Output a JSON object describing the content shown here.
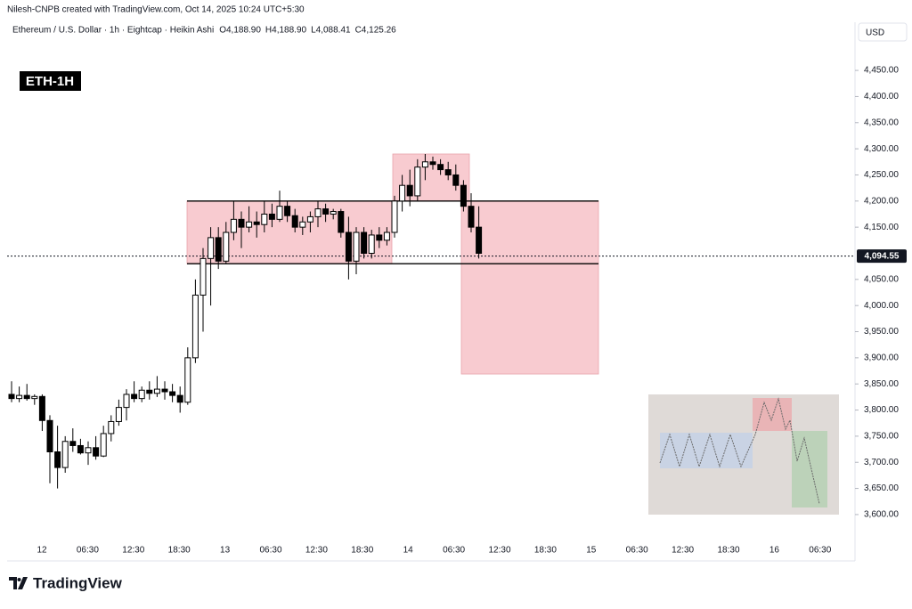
{
  "chart_data": {
    "type": "candlestick",
    "attribution": "Nilesh-CNPB created with TradingView.com, Oct 14, 2025 10:24 UTC+5:30",
    "title": "Ethereum / U.S. Dollar · 1h · Eightcap · Heikin Ashi",
    "ohlc_legend": [
      {
        "value": 4188.9,
        "label": "O4,188.90"
      },
      {
        "value": 4188.9,
        "label": "H4,188.90"
      },
      {
        "value": 4088.41,
        "label": "L4,088.41"
      },
      {
        "value": 4125.26,
        "label": "C4,125.26"
      }
    ],
    "badge": "ETH-1H",
    "currency": "USD",
    "brand": "TradingView",
    "x_labels": [
      "12",
      "06:30",
      "12:30",
      "18:30",
      "13",
      "06:30",
      "12:30",
      "18:30",
      "14",
      "06:30",
      "12:30",
      "18:30",
      "15",
      "06:30",
      "12:30",
      "18:30",
      "16",
      "06:30"
    ],
    "open": [
      3830,
      3822,
      3828,
      3822,
      3826,
      3780,
      3720,
      3690,
      3740,
      3732,
      3718,
      3728,
      3712,
      3755,
      3778,
      3805,
      3830,
      3822,
      3838,
      3832,
      3840,
      3835,
      3828,
      3815,
      3900,
      4020,
      4090,
      4130,
      4085,
      4140,
      4165,
      4150,
      4160,
      4155,
      4175,
      4165,
      4190,
      4172,
      4150,
      4160,
      4170,
      4185,
      4175,
      4180,
      4140,
      4085,
      4140,
      4100,
      4135,
      4125,
      4140,
      4200,
      4230,
      4210,
      4265,
      4275,
      4270,
      4260,
      4250,
      4230,
      4190,
      4150
    ],
    "high": [
      3855,
      3845,
      3850,
      3830,
      3830,
      3790,
      3770,
      3750,
      3765,
      3745,
      3740,
      3750,
      3770,
      3790,
      3820,
      3840,
      3855,
      3845,
      3855,
      3865,
      3855,
      3850,
      3845,
      3920,
      4050,
      4110,
      4150,
      4150,
      4160,
      4200,
      4180,
      4190,
      4180,
      4200,
      4195,
      4220,
      4200,
      4185,
      4170,
      4180,
      4200,
      4195,
      4185,
      4185,
      4170,
      4150,
      4150,
      4145,
      4150,
      4150,
      4210,
      4250,
      4260,
      4280,
      4290,
      4285,
      4280,
      4275,
      4270,
      4240,
      4215,
      4190
    ],
    "low": [
      3815,
      3815,
      3818,
      3810,
      3760,
      3660,
      3650,
      3680,
      3720,
      3715,
      3695,
      3705,
      3710,
      3740,
      3770,
      3780,
      3815,
      3815,
      3820,
      3825,
      3820,
      3815,
      3795,
      3810,
      3890,
      3950,
      4000,
      4070,
      4080,
      4125,
      4110,
      4140,
      4130,
      4140,
      4150,
      4160,
      4160,
      4140,
      4135,
      4140,
      4150,
      4160,
      4165,
      4130,
      4050,
      4060,
      4090,
      4090,
      4110,
      4115,
      4130,
      4180,
      4190,
      4200,
      4240,
      4260,
      4250,
      4240,
      4220,
      4180,
      4140,
      4090
    ],
    "close": [
      3822,
      3828,
      3822,
      3826,
      3780,
      3720,
      3690,
      3740,
      3732,
      3718,
      3728,
      3712,
      3755,
      3778,
      3805,
      3830,
      3822,
      3838,
      3832,
      3840,
      3835,
      3828,
      3815,
      3900,
      4020,
      4090,
      4130,
      4085,
      4140,
      4165,
      4150,
      4160,
      4155,
      4175,
      4165,
      4190,
      4172,
      4150,
      4160,
      4170,
      4185,
      4175,
      4180,
      4140,
      4085,
      4140,
      4100,
      4135,
      4125,
      4140,
      4200,
      4230,
      4210,
      4265,
      4275,
      4270,
      4260,
      4250,
      4230,
      4190,
      4150,
      4100
    ],
    "up_color": "#ffffff",
    "down_color": "#000000",
    "ylim": [
      3560,
      4520
    ],
    "yticks": [
      {
        "value": 4450,
        "label": "4,450.00"
      },
      {
        "value": 4400,
        "label": "4,400.00"
      },
      {
        "value": 4350,
        "label": "4,350.00"
      },
      {
        "value": 4300,
        "label": "4,300.00"
      },
      {
        "value": 4250,
        "label": "4,250.00"
      },
      {
        "value": 4200,
        "label": "4,200.00"
      },
      {
        "value": 4150,
        "label": "4,150.00"
      },
      {
        "value": 4050,
        "label": "4,050.00"
      },
      {
        "value": 4000,
        "label": "4,000.00"
      },
      {
        "value": 3950,
        "label": "3,950.00"
      },
      {
        "value": 3900,
        "label": "3,900.00"
      },
      {
        "value": 3850,
        "label": "3,850.00"
      },
      {
        "value": 3800,
        "label": "3,800.00"
      },
      {
        "value": 3750,
        "label": "3,750.00"
      },
      {
        "value": 3700,
        "label": "3,700.00"
      },
      {
        "value": 3650,
        "label": "3,650.00"
      },
      {
        "value": 3600,
        "label": "3,600.00"
      }
    ],
    "last_price": {
      "value": 4094.55,
      "label": "4,094.55"
    },
    "zones": [
      {
        "low": 4080,
        "high": 4200,
        "color": "#f8c6cb"
      },
      {
        "low": 4200,
        "high": 4290,
        "color": "#f8c6cb"
      },
      {
        "low": 3869,
        "high": 4200,
        "color": "#f8c6cb"
      }
    ],
    "levels": [
      4200,
      4080
    ]
  }
}
